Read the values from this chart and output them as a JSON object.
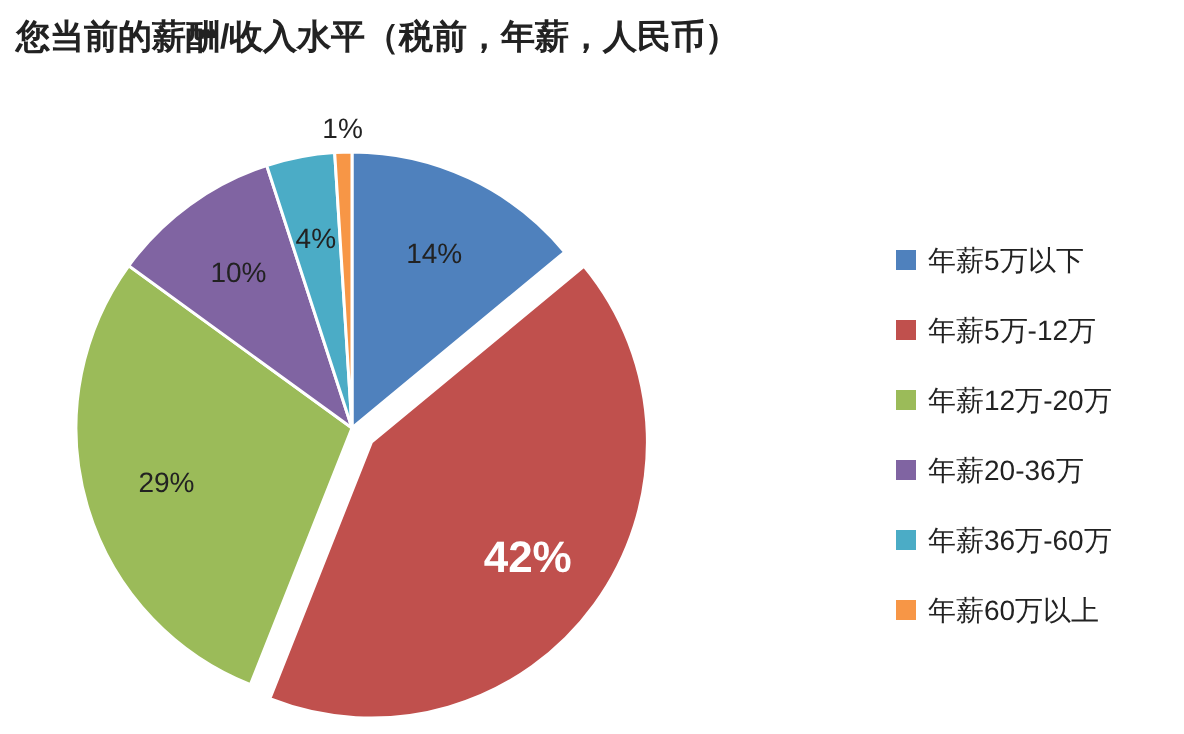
{
  "chart_data": {
    "type": "pie",
    "title": "您当前的薪酬/收入水平（税前，年薪，人民币）",
    "categories": [
      "年薪5万以下",
      "年薪5万-12万",
      "年薪12万-20万",
      "年薪20-36万",
      "年薪36万-60万",
      "年薪60万以上"
    ],
    "values": [
      14,
      42,
      29,
      10,
      4,
      1
    ],
    "colors": [
      "#4f81bd",
      "#c0504d",
      "#9bbb59",
      "#8064a2",
      "#4bacc6",
      "#f79646"
    ],
    "value_labels": [
      "14%",
      "42%",
      "29%",
      "10%",
      "4%",
      "1%"
    ],
    "legend": "right"
  }
}
